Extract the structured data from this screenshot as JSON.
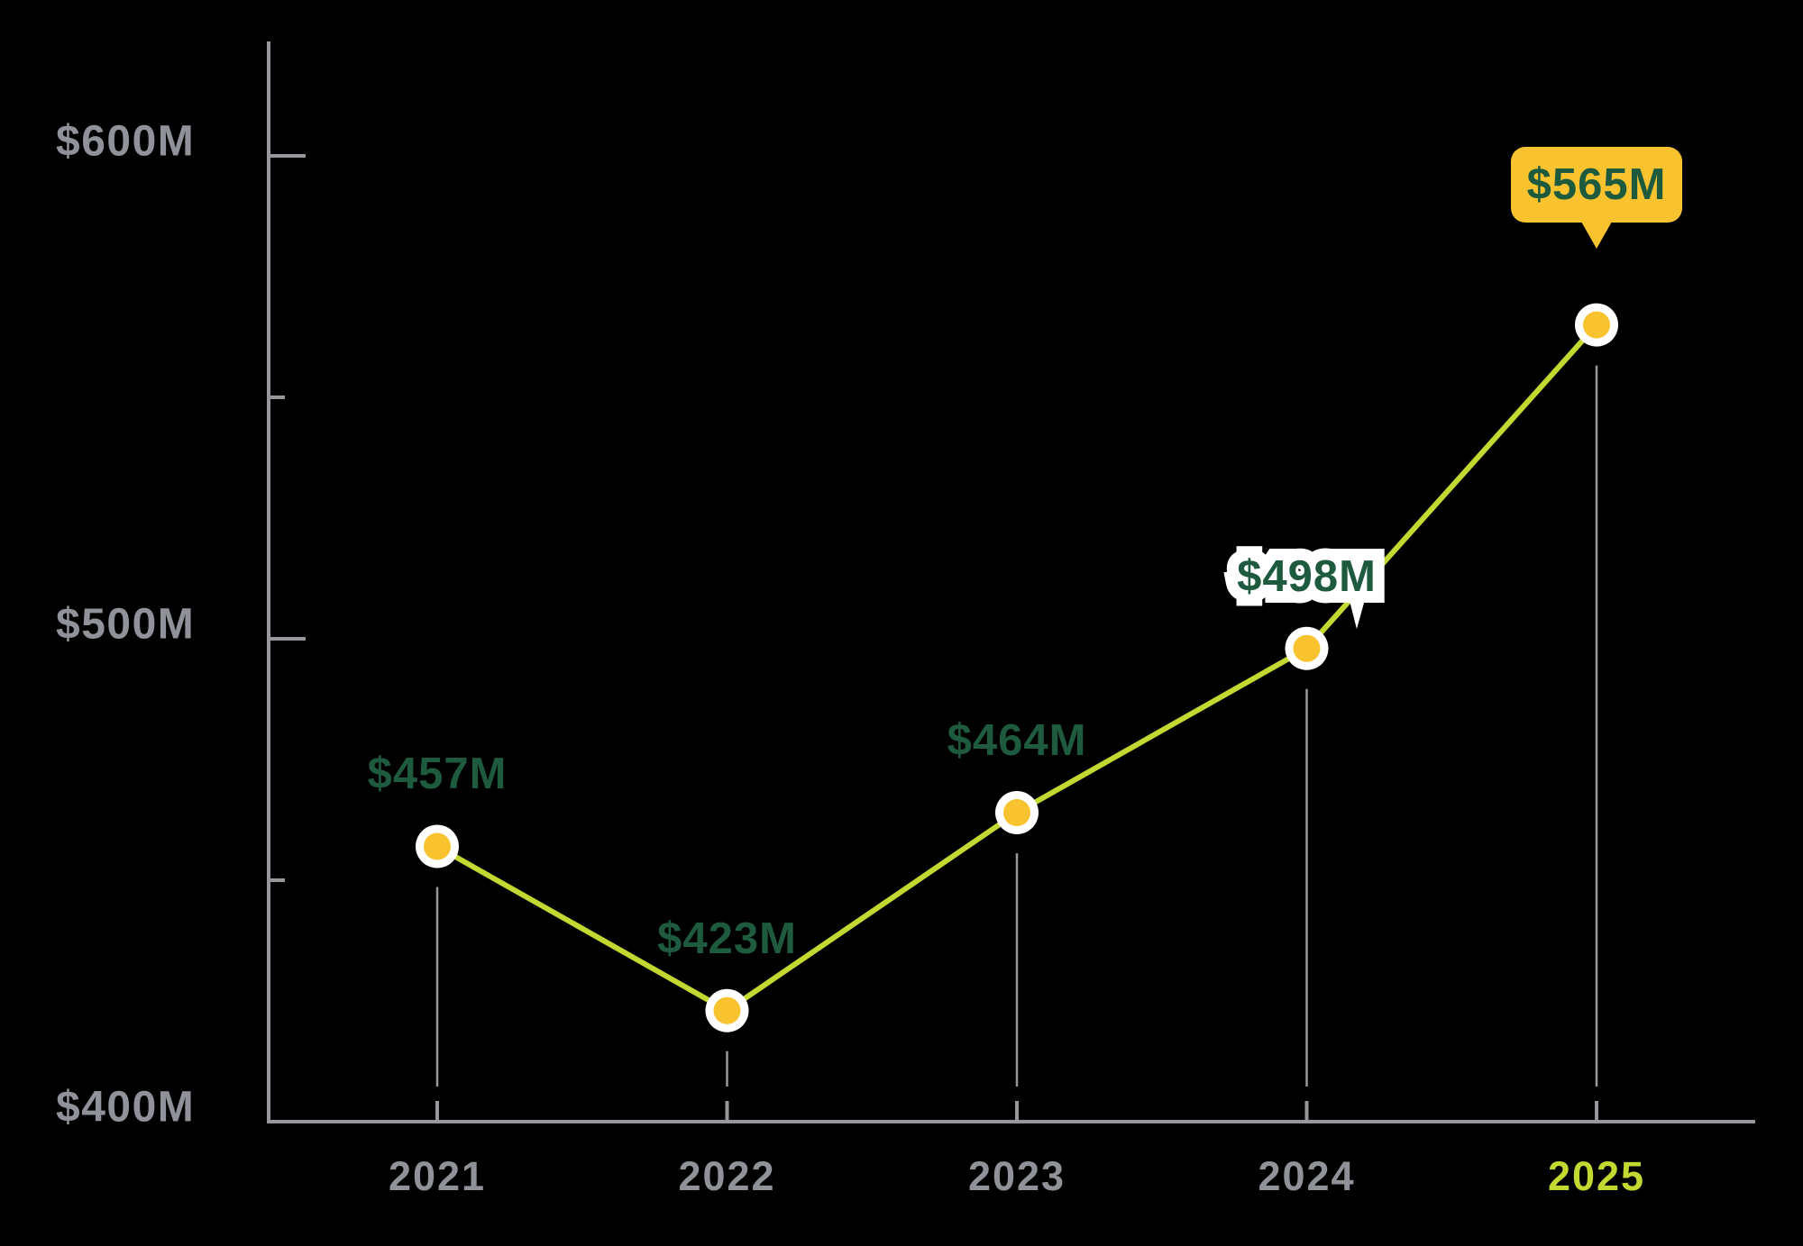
{
  "chart_data": {
    "type": "line",
    "x": [
      "2021",
      "2022",
      "2023",
      "2024",
      "2025"
    ],
    "series": [
      {
        "name": "annual-value",
        "values": [
          457,
          423,
          464,
          498,
          565
        ]
      }
    ],
    "points": [
      {
        "year": "2021",
        "value": 457,
        "label": "$457M",
        "style": "plain-green"
      },
      {
        "year": "2022",
        "value": 423,
        "label": "$423M",
        "style": "plain-green"
      },
      {
        "year": "2023",
        "value": 464,
        "label": "$464M",
        "style": "plain-green"
      },
      {
        "year": "2024",
        "value": 498,
        "label": "$498M",
        "style": "white-halo"
      },
      {
        "year": "2025",
        "value": 565,
        "label": "$565M",
        "style": "yellow-callout"
      }
    ],
    "y_axis": {
      "min": 400,
      "max": 600,
      "major_ticks": [
        600,
        500,
        400
      ],
      "tick_labels": [
        "$600M",
        "$500M",
        "$400M"
      ],
      "minor_ticks": [
        550,
        450
      ],
      "unit": "$M"
    },
    "x_axis": {
      "tick_labels": [
        "2021",
        "2022",
        "2023",
        "2024",
        "2025"
      ],
      "highlighted_label": "2025"
    },
    "legend": "none",
    "grid": "off",
    "layout_hints": {
      "drop_lines": "vertical gray line from each marker down toward x-axis",
      "markers": "yellow dot with white ring"
    },
    "colors": {
      "background": "#000000",
      "line": "#C3D830",
      "marker_fill": "#F8C32F",
      "marker_ring": "#FFFFFF",
      "label_green": "#1E5A3E",
      "axis_gray": "#97989C",
      "text_gray": "#8F9298",
      "callout_bg": "#F8C32F",
      "highlight_text": "#C3D830"
    }
  }
}
